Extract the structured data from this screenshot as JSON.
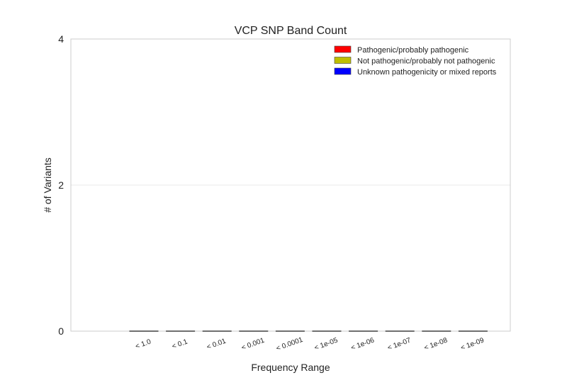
{
  "chart_data": {
    "type": "bar",
    "title": "VCP SNP Band Count",
    "xlabel": "Frequency Range",
    "ylabel": "# of Variants",
    "categories": [
      "< 1.0",
      "< 0.1",
      "< 0.01",
      "< 0.001",
      "< 0.0001",
      "< 1e-05",
      "< 1e-06",
      "< 1e-07",
      "< 1e-08",
      "< 1e-09"
    ],
    "series": [
      {
        "name": "Pathogenic/probably pathogenic",
        "color": "#ff0000",
        "values": [
          0,
          0,
          0,
          0,
          0,
          0,
          0,
          0,
          0,
          0
        ]
      },
      {
        "name": "Not pathogenic/probably not pathogenic",
        "color": "#bfbf00",
        "values": [
          0,
          0,
          0,
          0,
          0,
          0,
          0,
          0,
          0,
          0
        ]
      },
      {
        "name": "Unknown pathogenicity or mixed reports",
        "color": "#0000ff",
        "values": [
          0,
          0,
          0,
          0,
          0,
          0,
          0,
          0,
          0,
          0
        ]
      }
    ],
    "ylim": [
      0,
      4
    ],
    "yticks": [
      0,
      2,
      4
    ],
    "grid": true,
    "legend_position": "top-right",
    "stacked": true
  }
}
